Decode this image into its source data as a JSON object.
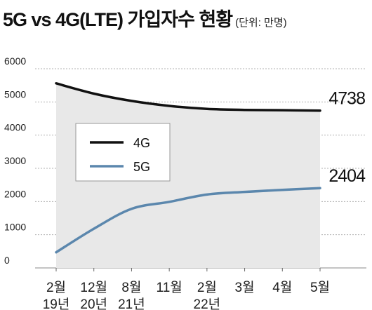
{
  "title": {
    "main": "5G vs 4G(LTE) 가입자수 현황",
    "unit": "(단위: 만명)"
  },
  "chart_data": {
    "type": "line",
    "title": "5G vs 4G(LTE) 가입자수 현황",
    "unit": "(단위: 만명)",
    "ylim": [
      0,
      6000
    ],
    "yticks": [
      "6000",
      "5000",
      "4000",
      "3000",
      "2000",
      "1000",
      "0"
    ],
    "categories": [
      [
        "2월",
        "19년"
      ],
      [
        "12월",
        "20년"
      ],
      [
        "8월",
        "21년"
      ],
      [
        "11월",
        ""
      ],
      [
        "2월",
        "22년"
      ],
      [
        "3월",
        ""
      ],
      [
        "4월",
        ""
      ],
      [
        "5월",
        ""
      ]
    ],
    "series": [
      {
        "name": "4G",
        "color": "#111111",
        "values": [
          5560,
          5250,
          5030,
          4880,
          4790,
          4760,
          4750,
          4738
        ]
      },
      {
        "name": "5G",
        "color": "#5b87ad",
        "values": [
          470,
          1180,
          1780,
          1990,
          2210,
          2290,
          2350,
          2404
        ]
      }
    ],
    "end_labels": [
      "4738",
      "2404"
    ],
    "grid": "horizontal-dashed",
    "legend_position": "center-left",
    "background_fill": "#e8e8e8"
  }
}
